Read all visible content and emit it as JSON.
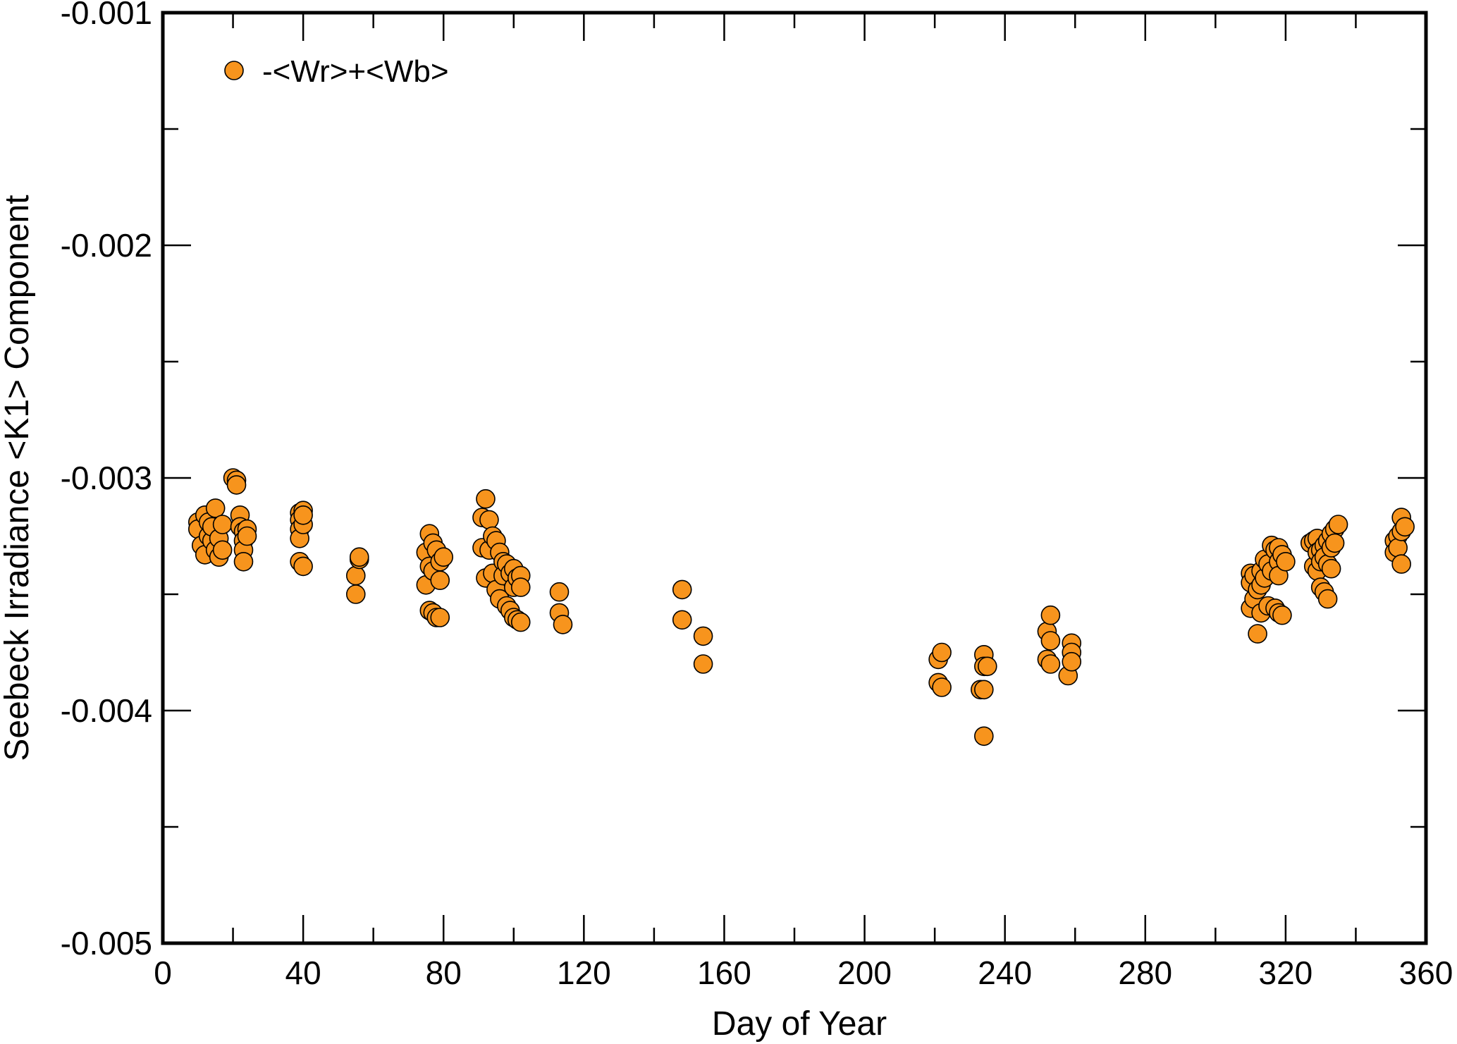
{
  "chart_data": {
    "type": "scatter",
    "title": "",
    "xlabel": "Day of Year",
    "ylabel": "Seebeck Irradiance <K1> Component",
    "xlim": [
      0,
      360
    ],
    "ylim": [
      -0.005,
      -0.001
    ],
    "x_ticks": [
      "0",
      "40",
      "80",
      "120",
      "160",
      "200",
      "240",
      "280",
      "320",
      "360"
    ],
    "y_ticks": [
      "-0.005",
      "-0.004",
      "-0.003",
      "-0.002",
      "-0.001"
    ],
    "grid": false,
    "legend_position": "top-left",
    "marker_color": "#F7941D",
    "marker_edge_color": "#000000",
    "series": [
      {
        "name": "-<Wr>+<Wb>",
        "points": [
          [
            10,
            -0.00319
          ],
          [
            10,
            -0.00322
          ],
          [
            11,
            -0.00329
          ],
          [
            12,
            -0.00316
          ],
          [
            12,
            -0.00333
          ],
          [
            13,
            -0.00325
          ],
          [
            13,
            -0.00319
          ],
          [
            14,
            -0.00327
          ],
          [
            14,
            -0.00321
          ],
          [
            15,
            -0.00313
          ],
          [
            15,
            -0.00331
          ],
          [
            16,
            -0.00334
          ],
          [
            16,
            -0.00326
          ],
          [
            17,
            -0.0032
          ],
          [
            17,
            -0.00331
          ],
          [
            20,
            -0.003
          ],
          [
            21,
            -0.00301
          ],
          [
            21,
            -0.00303
          ],
          [
            22,
            -0.00316
          ],
          [
            22,
            -0.00321
          ],
          [
            23,
            -0.00323
          ],
          [
            23,
            -0.00327
          ],
          [
            23,
            -0.00331
          ],
          [
            23,
            -0.00336
          ],
          [
            24,
            -0.00322
          ],
          [
            24,
            -0.00325
          ],
          [
            39,
            -0.00315
          ],
          [
            39,
            -0.00318
          ],
          [
            39,
            -0.00322
          ],
          [
            39,
            -0.00326
          ],
          [
            39,
            -0.00336
          ],
          [
            40,
            -0.00338
          ],
          [
            40,
            -0.00314
          ],
          [
            40,
            -0.0032
          ],
          [
            40,
            -0.00316
          ],
          [
            55,
            -0.00342
          ],
          [
            55,
            -0.0035
          ],
          [
            56,
            -0.00335
          ],
          [
            56,
            -0.00334
          ],
          [
            75,
            -0.00332
          ],
          [
            75,
            -0.00346
          ],
          [
            76,
            -0.00324
          ],
          [
            76,
            -0.00338
          ],
          [
            76,
            -0.00357
          ],
          [
            77,
            -0.00328
          ],
          [
            77,
            -0.0034
          ],
          [
            77,
            -0.00358
          ],
          [
            78,
            -0.00331
          ],
          [
            78,
            -0.0036
          ],
          [
            79,
            -0.00344
          ],
          [
            79,
            -0.00336
          ],
          [
            79,
            -0.0036
          ],
          [
            80,
            -0.00334
          ],
          [
            91,
            -0.00317
          ],
          [
            91,
            -0.0033
          ],
          [
            92,
            -0.00309
          ],
          [
            92,
            -0.00343
          ],
          [
            93,
            -0.00318
          ],
          [
            93,
            -0.00331
          ],
          [
            94,
            -0.00325
          ],
          [
            94,
            -0.00341
          ],
          [
            95,
            -0.00327
          ],
          [
            95,
            -0.00348
          ],
          [
            96,
            -0.00332
          ],
          [
            96,
            -0.00352
          ],
          [
            97,
            -0.00336
          ],
          [
            97,
            -0.00342
          ],
          [
            98,
            -0.00337
          ],
          [
            98,
            -0.00355
          ],
          [
            99,
            -0.00341
          ],
          [
            99,
            -0.00357
          ],
          [
            100,
            -0.00339
          ],
          [
            100,
            -0.00347
          ],
          [
            100,
            -0.0036
          ],
          [
            101,
            -0.00343
          ],
          [
            101,
            -0.00361
          ],
          [
            102,
            -0.00342
          ],
          [
            102,
            -0.00347
          ],
          [
            102,
            -0.00362
          ],
          [
            113,
            -0.00349
          ],
          [
            113,
            -0.00358
          ],
          [
            114,
            -0.00363
          ],
          [
            148,
            -0.00348
          ],
          [
            148,
            -0.00361
          ],
          [
            154,
            -0.00368
          ],
          [
            154,
            -0.0038
          ],
          [
            221,
            -0.00378
          ],
          [
            221,
            -0.00388
          ],
          [
            222,
            -0.00375
          ],
          [
            222,
            -0.0039
          ],
          [
            233,
            -0.00391
          ],
          [
            234,
            -0.00376
          ],
          [
            234,
            -0.00381
          ],
          [
            234,
            -0.00391
          ],
          [
            234,
            -0.00411
          ],
          [
            235,
            -0.00381
          ],
          [
            252,
            -0.00366
          ],
          [
            252,
            -0.00378
          ],
          [
            253,
            -0.00359
          ],
          [
            253,
            -0.0037
          ],
          [
            253,
            -0.0038
          ],
          [
            258,
            -0.00385
          ],
          [
            259,
            -0.00371
          ],
          [
            259,
            -0.00375
          ],
          [
            259,
            -0.00379
          ],
          [
            310,
            -0.00341
          ],
          [
            310,
            -0.00345
          ],
          [
            310,
            -0.00356
          ],
          [
            311,
            -0.00342
          ],
          [
            311,
            -0.00352
          ],
          [
            312,
            -0.00348
          ],
          [
            312,
            -0.00367
          ],
          [
            313,
            -0.0034
          ],
          [
            313,
            -0.00346
          ],
          [
            313,
            -0.00358
          ],
          [
            314,
            -0.00335
          ],
          [
            314,
            -0.00343
          ],
          [
            315,
            -0.00337
          ],
          [
            315,
            -0.00355
          ],
          [
            316,
            -0.00329
          ],
          [
            316,
            -0.0034
          ],
          [
            317,
            -0.00331
          ],
          [
            317,
            -0.00356
          ],
          [
            318,
            -0.0033
          ],
          [
            318,
            -0.00336
          ],
          [
            318,
            -0.00342
          ],
          [
            318,
            -0.00358
          ],
          [
            319,
            -0.00333
          ],
          [
            319,
            -0.00359
          ],
          [
            320,
            -0.00336
          ],
          [
            327,
            -0.00328
          ],
          [
            328,
            -0.00327
          ],
          [
            328,
            -0.00338
          ],
          [
            329,
            -0.00326
          ],
          [
            329,
            -0.00332
          ],
          [
            329,
            -0.0034
          ],
          [
            330,
            -0.00331
          ],
          [
            330,
            -0.00336
          ],
          [
            330,
            -0.00347
          ],
          [
            331,
            -0.00329
          ],
          [
            331,
            -0.00334
          ],
          [
            331,
            -0.00349
          ],
          [
            332,
            -0.00327
          ],
          [
            332,
            -0.00337
          ],
          [
            332,
            -0.00352
          ],
          [
            333,
            -0.00324
          ],
          [
            333,
            -0.0033
          ],
          [
            333,
            -0.00339
          ],
          [
            334,
            -0.00322
          ],
          [
            334,
            -0.00328
          ],
          [
            335,
            -0.0032
          ],
          [
            351,
            -0.00327
          ],
          [
            351,
            -0.00332
          ],
          [
            352,
            -0.00325
          ],
          [
            352,
            -0.0033
          ],
          [
            353,
            -0.00317
          ],
          [
            353,
            -0.00323
          ],
          [
            353,
            -0.00337
          ],
          [
            354,
            -0.00321
          ]
        ]
      }
    ]
  }
}
